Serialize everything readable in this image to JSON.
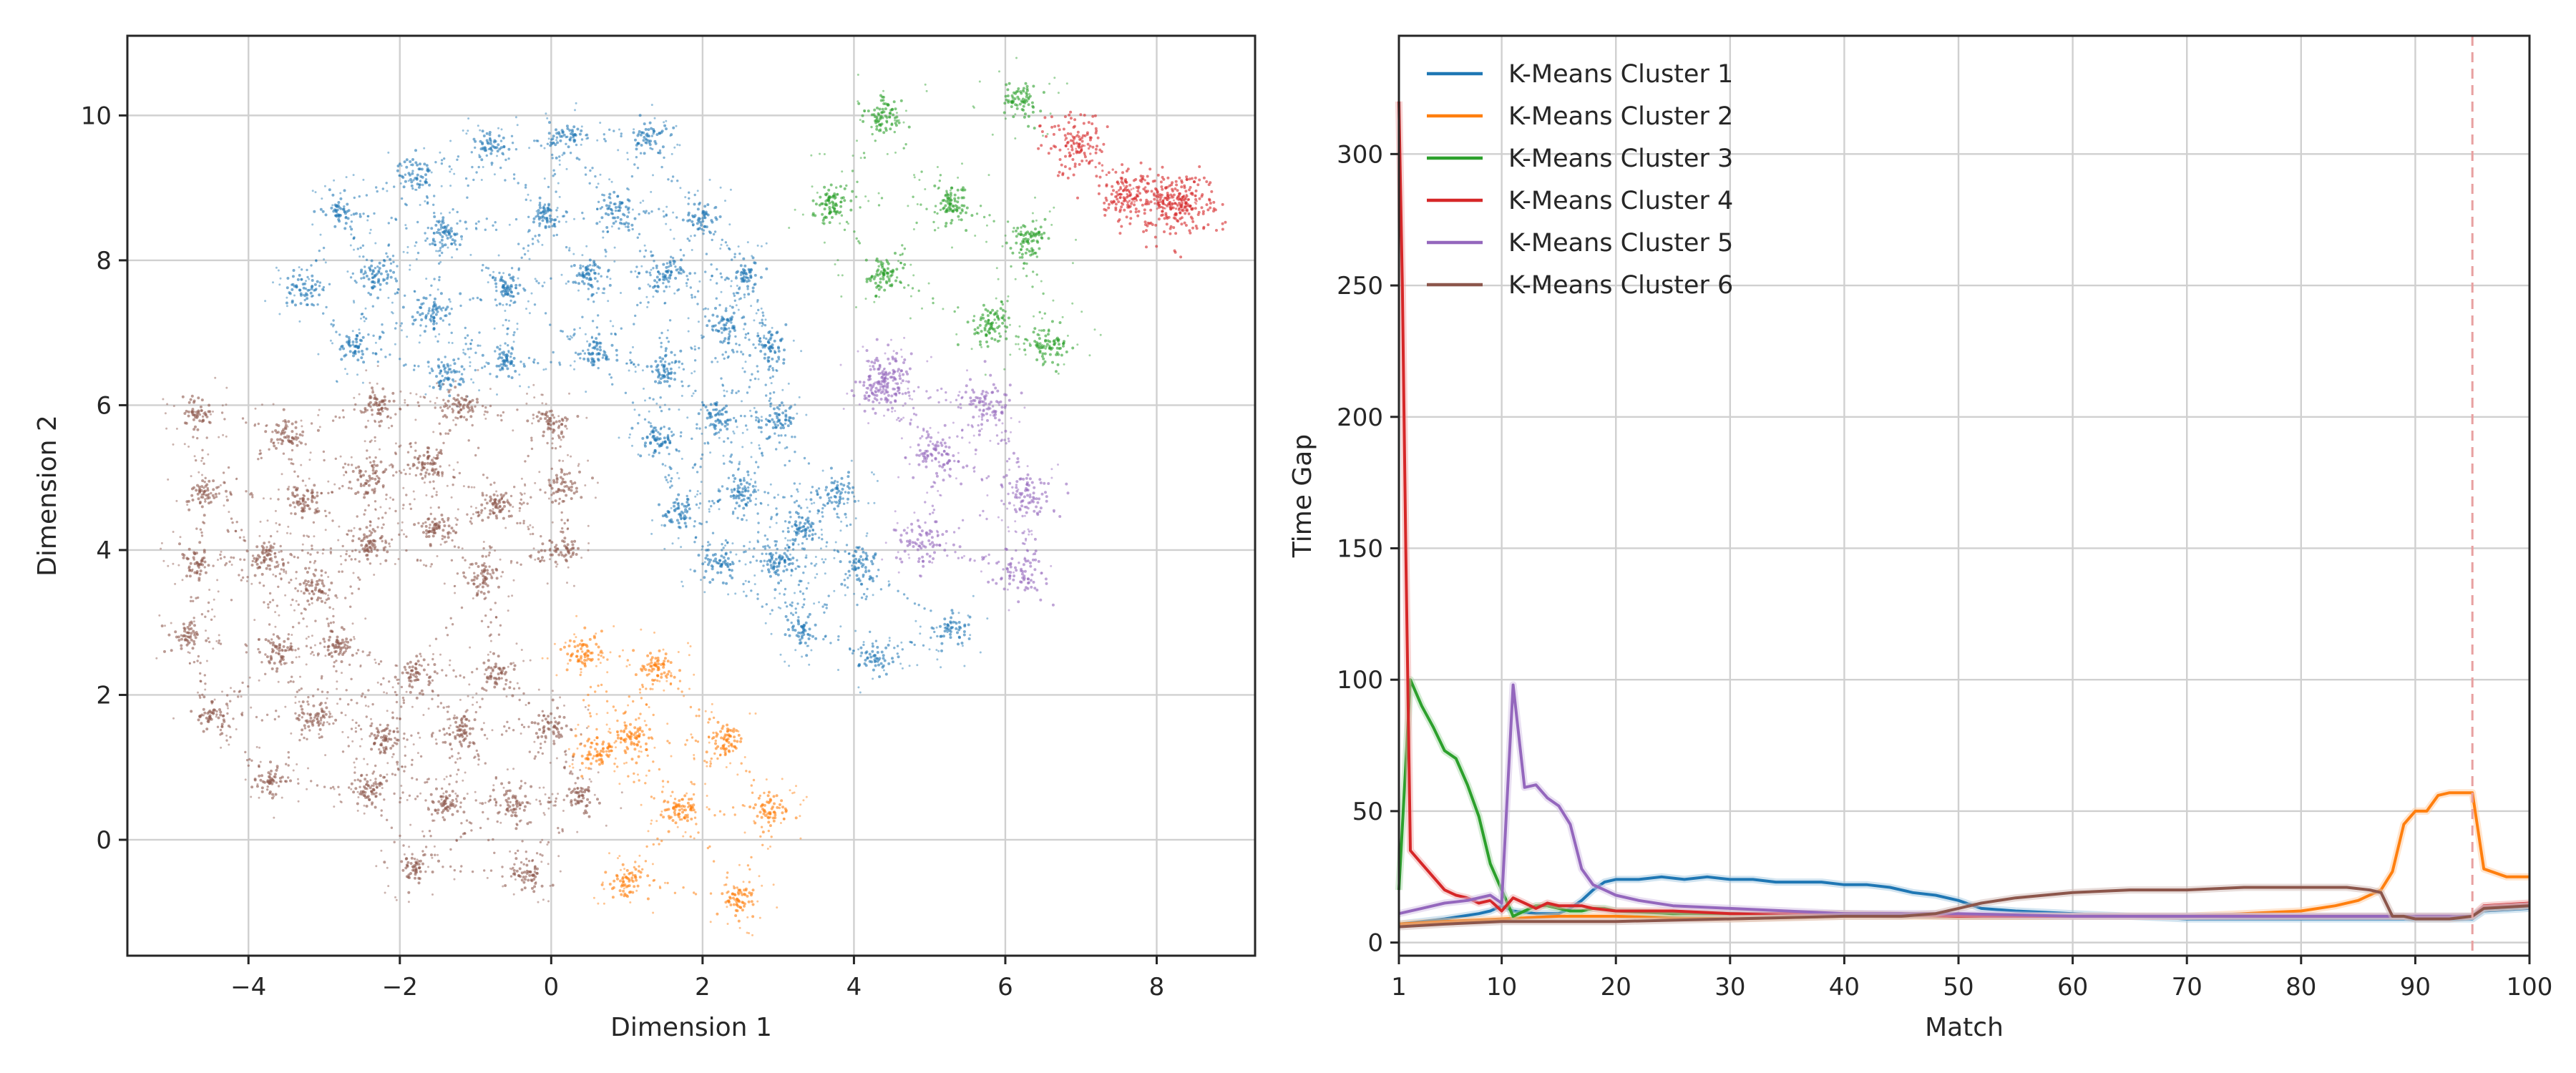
{
  "colors": {
    "cluster1": "#1f77b4",
    "cluster2": "#ff7f0e",
    "cluster3": "#2ca02c",
    "cluster4": "#d62728",
    "cluster5": "#9467bd",
    "cluster6": "#8c564b",
    "vline": "#e8a0a0"
  },
  "chart_data": [
    {
      "type": "scatter",
      "title": "",
      "xlabel": "Dimension 1",
      "ylabel": "Dimension 2",
      "xlim": [
        -5.6,
        9.3
      ],
      "ylim": [
        -1.6,
        11.1
      ],
      "xticks": [
        "−4",
        "−2",
        "0",
        "2",
        "4",
        "6",
        "8"
      ],
      "xtick_values": [
        -4,
        -2,
        0,
        2,
        4,
        6,
        8
      ],
      "yticks": [
        "0",
        "2",
        "4",
        "6",
        "8",
        "10"
      ],
      "ytick_values": [
        0,
        2,
        4,
        6,
        8,
        10
      ],
      "grid": true,
      "clusters": [
        {
          "color_key": "cluster1",
          "centers": [
            [
              -3.3,
              7.6
            ],
            [
              -2.8,
              8.7
            ],
            [
              -1.8,
              9.2
            ],
            [
              -0.8,
              9.6
            ],
            [
              0.2,
              9.7
            ],
            [
              1.3,
              9.7
            ],
            [
              -2.3,
              7.8
            ],
            [
              -1.4,
              8.4
            ],
            [
              -0.1,
              8.6
            ],
            [
              0.9,
              8.7
            ],
            [
              2.0,
              8.6
            ],
            [
              -2.6,
              6.8
            ],
            [
              -1.6,
              7.3
            ],
            [
              -0.6,
              7.6
            ],
            [
              0.5,
              7.8
            ],
            [
              1.5,
              7.8
            ],
            [
              2.6,
              7.8
            ],
            [
              -1.4,
              6.4
            ],
            [
              -0.6,
              6.6
            ],
            [
              0.6,
              6.7
            ],
            [
              1.5,
              6.5
            ],
            [
              2.3,
              7.1
            ],
            [
              2.9,
              6.8
            ],
            [
              1.4,
              5.5
            ],
            [
              2.2,
              5.8
            ],
            [
              3.0,
              5.8
            ],
            [
              1.7,
              4.5
            ],
            [
              2.5,
              4.8
            ],
            [
              3.3,
              4.3
            ],
            [
              3.8,
              4.8
            ],
            [
              2.2,
              3.8
            ],
            [
              3.0,
              3.8
            ],
            [
              4.1,
              3.8
            ],
            [
              3.3,
              2.9
            ],
            [
              4.3,
              2.5
            ],
            [
              5.3,
              2.9
            ]
          ],
          "spread": 0.11,
          "scatter_radius": 0.55,
          "points_per_center": 45
        },
        {
          "color_key": "cluster2",
          "centers": [
            [
              0.4,
              2.6
            ],
            [
              1.4,
              2.4
            ],
            [
              1.1,
              1.4
            ],
            [
              2.3,
              1.4
            ],
            [
              1.7,
              0.4
            ],
            [
              2.9,
              0.4
            ],
            [
              1.0,
              -0.6
            ],
            [
              2.5,
              -0.8
            ],
            [
              0.6,
              1.2
            ]
          ],
          "spread": 0.11,
          "scatter_radius": 0.55,
          "points_per_center": 55
        },
        {
          "color_key": "cluster3",
          "centers": [
            [
              4.4,
              10.0
            ],
            [
              6.2,
              10.2
            ],
            [
              3.7,
              8.8
            ],
            [
              5.3,
              8.8
            ],
            [
              6.3,
              8.3
            ],
            [
              4.4,
              7.8
            ],
            [
              5.8,
              7.1
            ],
            [
              6.6,
              6.8
            ]
          ],
          "spread": 0.12,
          "scatter_radius": 0.7,
          "points_per_center": 70
        },
        {
          "color_key": "cluster4",
          "centers": [
            [
              8.4,
              8.8
            ],
            [
              8.1,
              8.8
            ],
            [
              7.6,
              8.9
            ],
            [
              6.9,
              9.6
            ]
          ],
          "spread": 0.22,
          "scatter_radius": 0.15,
          "points_per_center": 110
        },
        {
          "color_key": "cluster5",
          "centers": [
            [
              4.3,
              6.2
            ],
            [
              5.8,
              6.0
            ],
            [
              5.1,
              5.3
            ],
            [
              6.3,
              4.8
            ],
            [
              4.9,
              4.1
            ],
            [
              6.2,
              3.7
            ],
            [
              4.5,
              6.4
            ]
          ],
          "spread": 0.16,
          "scatter_radius": 0.6,
          "points_per_center": 70
        },
        {
          "color_key": "cluster6",
          "centers": [
            [
              -4.7,
              5.9
            ],
            [
              -3.5,
              5.6
            ],
            [
              -2.3,
              6.0
            ],
            [
              -1.2,
              6.0
            ],
            [
              0.0,
              5.8
            ],
            [
              -4.6,
              4.8
            ],
            [
              -3.3,
              4.7
            ],
            [
              -2.4,
              5.0
            ],
            [
              -1.6,
              5.2
            ],
            [
              -0.7,
              4.6
            ],
            [
              0.2,
              4.9
            ],
            [
              -4.7,
              3.8
            ],
            [
              -3.8,
              3.9
            ],
            [
              -3.1,
              3.5
            ],
            [
              -2.4,
              4.1
            ],
            [
              -1.5,
              4.3
            ],
            [
              -0.9,
              3.6
            ],
            [
              0.1,
              4.0
            ],
            [
              -4.8,
              2.8
            ],
            [
              -3.6,
              2.6
            ],
            [
              -2.8,
              2.7
            ],
            [
              -1.8,
              2.3
            ],
            [
              -0.7,
              2.3
            ],
            [
              -4.5,
              1.7
            ],
            [
              -3.1,
              1.7
            ],
            [
              -2.2,
              1.4
            ],
            [
              -1.2,
              1.5
            ],
            [
              0.0,
              1.6
            ],
            [
              -3.7,
              0.8
            ],
            [
              -2.4,
              0.7
            ],
            [
              -1.4,
              0.5
            ],
            [
              -0.5,
              0.5
            ],
            [
              0.4,
              0.6
            ],
            [
              -1.8,
              -0.4
            ],
            [
              -0.3,
              -0.5
            ]
          ],
          "spread": 0.11,
          "scatter_radius": 0.55,
          "points_per_center": 45
        }
      ]
    },
    {
      "type": "line",
      "title": "",
      "xlabel": "Match",
      "ylabel": "Time Gap",
      "xlim": [
        1,
        100
      ],
      "ylim": [
        -5,
        345
      ],
      "xticks": [
        "1",
        "10",
        "20",
        "30",
        "40",
        "50",
        "60",
        "70",
        "80",
        "90",
        "100"
      ],
      "xtick_values": [
        1,
        10,
        20,
        30,
        40,
        50,
        60,
        70,
        80,
        90,
        100
      ],
      "yticks": [
        "0",
        "50",
        "100",
        "150",
        "200",
        "250",
        "300"
      ],
      "ytick_values": [
        0,
        50,
        100,
        150,
        200,
        250,
        300
      ],
      "grid": true,
      "vline_x": 95,
      "legend_position": "upper-left",
      "series": [
        {
          "name": "K-Means Cluster 1",
          "color_key": "cluster1",
          "x": [
            1,
            5,
            8,
            9,
            10,
            11,
            13,
            15,
            16,
            17,
            18,
            19,
            20,
            22,
            24,
            26,
            28,
            30,
            32,
            34,
            36,
            38,
            40,
            42,
            44,
            46,
            48,
            50,
            52,
            55,
            60,
            65,
            70,
            75,
            80,
            85,
            90,
            94,
            95,
            96,
            100
          ],
          "y": [
            7,
            9,
            11,
            12,
            14,
            12,
            11,
            11,
            13,
            16,
            20,
            23,
            24,
            24,
            25,
            24,
            25,
            24,
            24,
            23,
            23,
            23,
            22,
            22,
            21,
            19,
            18,
            16,
            13,
            12,
            11,
            10,
            9,
            9,
            9,
            9,
            9,
            9,
            9,
            12,
            13
          ]
        },
        {
          "name": "K-Means Cluster 2",
          "color_key": "cluster2",
          "x": [
            1,
            5,
            10,
            15,
            20,
            30,
            40,
            50,
            60,
            70,
            75,
            80,
            83,
            85,
            87,
            88,
            89,
            90,
            91,
            92,
            93,
            94,
            95,
            96,
            98,
            100
          ],
          "y": [
            7,
            8,
            9,
            10,
            10,
            9,
            10,
            10,
            10,
            10,
            11,
            12,
            14,
            16,
            20,
            27,
            45,
            50,
            50,
            56,
            57,
            57,
            57,
            28,
            25,
            25
          ]
        },
        {
          "name": "K-Means Cluster 3",
          "color_key": "cluster3",
          "x": [
            1,
            2,
            3,
            4,
            5,
            6,
            7,
            8,
            9,
            10,
            11,
            12,
            13,
            14,
            15,
            16,
            17,
            18,
            19,
            20,
            25,
            30,
            40,
            50,
            60,
            70,
            80,
            90,
            95,
            96,
            100
          ],
          "y": [
            20,
            100,
            90,
            82,
            73,
            70,
            60,
            48,
            30,
            20,
            10,
            12,
            14,
            14,
            13,
            12,
            12,
            13,
            13,
            12,
            11,
            11,
            11,
            10,
            10,
            10,
            10,
            10,
            10,
            13,
            14
          ]
        },
        {
          "name": "K-Means Cluster 4",
          "color_key": "cluster4",
          "x": [
            1,
            1.3,
            1.6,
            2,
            3,
            4,
            5,
            6,
            7,
            8,
            9,
            10,
            11,
            12,
            13,
            14,
            15,
            16,
            17,
            18,
            20,
            25,
            30,
            40,
            50,
            60,
            70,
            80,
            90,
            95,
            96,
            100
          ],
          "y": [
            320,
            250,
            150,
            35,
            30,
            25,
            20,
            18,
            17,
            15,
            16,
            12,
            17,
            15,
            13,
            15,
            14,
            14,
            14,
            13,
            12,
            12,
            11,
            11,
            10,
            10,
            10,
            10,
            10,
            10,
            14,
            15
          ]
        },
        {
          "name": "K-Means Cluster 5",
          "color_key": "cluster5",
          "x": [
            1,
            3,
            5,
            7,
            9,
            10,
            11,
            12,
            13,
            14,
            15,
            16,
            17,
            18,
            19,
            20,
            22,
            25,
            30,
            40,
            50,
            60,
            70,
            80,
            90,
            95,
            96,
            100
          ],
          "y": [
            11,
            13,
            15,
            16,
            18,
            15,
            98,
            59,
            60,
            55,
            52,
            45,
            28,
            22,
            20,
            18,
            16,
            14,
            13,
            11,
            11,
            10,
            10,
            10,
            10,
            10,
            13,
            14
          ]
        },
        {
          "name": "K-Means Cluster 6",
          "color_key": "cluster6",
          "x": [
            1,
            5,
            10,
            15,
            20,
            30,
            40,
            45,
            48,
            50,
            52,
            55,
            60,
            65,
            70,
            75,
            80,
            84,
            86,
            87,
            88,
            89,
            90,
            93,
            95,
            96,
            100
          ],
          "y": [
            6,
            7,
            8,
            8,
            8,
            9,
            10,
            10,
            11,
            13,
            15,
            17,
            19,
            20,
            20,
            21,
            21,
            21,
            20,
            19,
            10,
            10,
            9,
            9,
            10,
            13,
            14
          ]
        }
      ]
    }
  ]
}
